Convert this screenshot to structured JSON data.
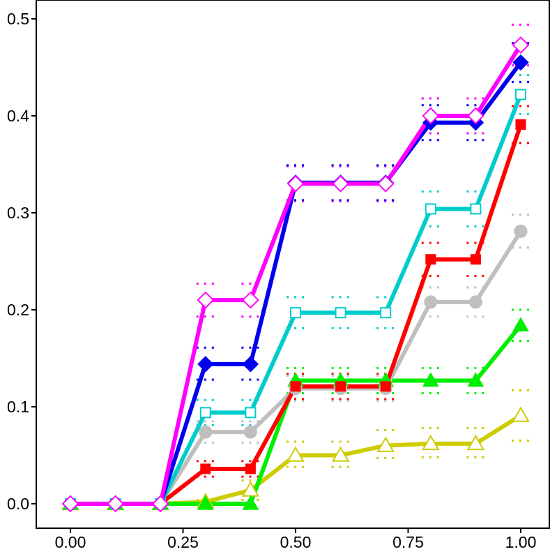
{
  "chart_data": {
    "type": "line",
    "title": "",
    "xlabel": "",
    "ylabel": "",
    "xlim": [
      -0.08,
      1.0
    ],
    "ylim": [
      -0.025,
      0.52
    ],
    "x_ticks": [
      0.0,
      0.25,
      0.5,
      0.75,
      1.0
    ],
    "x_tick_labels": [
      "0.00",
      "0.25",
      "0.50",
      "0.75",
      "1.00"
    ],
    "y_ticks": [
      0.0,
      0.1,
      0.2,
      0.3,
      0.4,
      0.5
    ],
    "y_tick_labels": [
      "0.0",
      "0.1",
      "0.2",
      "0.3",
      "0.4",
      "0.5"
    ],
    "grid": false,
    "legend": "none",
    "x": [
      0.0,
      0.1,
      0.2,
      0.3,
      0.4,
      0.5,
      0.6,
      0.7,
      0.8,
      0.9,
      1.0
    ],
    "series": [
      {
        "color": "#ff00ff",
        "marker": "diamond-open",
        "values": [
          0.0,
          0.0,
          0.0,
          0.21,
          0.21,
          0.33,
          0.33,
          0.33,
          0.4,
          0.4,
          0.473
        ],
        "interval": [
          [
            0,
            0
          ],
          [
            0,
            0
          ],
          [
            0,
            0
          ],
          [
            0.193,
            0.227
          ],
          [
            0.193,
            0.227
          ],
          [
            0.312,
            0.348
          ],
          [
            0.312,
            0.348
          ],
          [
            0.312,
            0.348
          ],
          [
            0.382,
            0.418
          ],
          [
            0.382,
            0.418
          ],
          [
            0.452,
            0.494
          ]
        ]
      },
      {
        "color": "#0000ee",
        "marker": "diamond-filled",
        "values": [
          0.0,
          0.0,
          0.0,
          0.144,
          0.144,
          0.331,
          0.331,
          0.331,
          0.393,
          0.393,
          0.455
        ],
        "interval": [
          [
            0,
            0
          ],
          [
            0,
            0
          ],
          [
            0,
            0
          ],
          [
            0.128,
            0.161
          ],
          [
            0.128,
            0.161
          ],
          [
            0.313,
            0.349
          ],
          [
            0.313,
            0.349
          ],
          [
            0.313,
            0.349
          ],
          [
            0.375,
            0.411
          ],
          [
            0.375,
            0.411
          ],
          [
            0.435,
            0.475
          ]
        ]
      },
      {
        "color": "#00cccc",
        "marker": "square-open",
        "values": [
          0.0,
          0.0,
          0.0,
          0.094,
          0.094,
          0.197,
          0.197,
          0.197,
          0.304,
          0.304,
          0.422
        ],
        "interval": [
          [
            0,
            0
          ],
          [
            0,
            0
          ],
          [
            0,
            0
          ],
          [
            0.081,
            0.107
          ],
          [
            0.081,
            0.107
          ],
          [
            0.181,
            0.213
          ],
          [
            0.181,
            0.213
          ],
          [
            0.181,
            0.213
          ],
          [
            0.286,
            0.322
          ],
          [
            0.286,
            0.322
          ],
          [
            0.402,
            0.442
          ]
        ]
      },
      {
        "color": "#ff0000",
        "marker": "square-filled",
        "values": [
          0.0,
          0.0,
          0.0,
          0.036,
          0.036,
          0.121,
          0.121,
          0.121,
          0.252,
          0.252,
          0.391
        ],
        "interval": [
          [
            0,
            0
          ],
          [
            0,
            0
          ],
          [
            0,
            0
          ],
          [
            0.028,
            0.044
          ],
          [
            0.028,
            0.044
          ],
          [
            0.108,
            0.134
          ],
          [
            0.108,
            0.134
          ],
          [
            0.108,
            0.134
          ],
          [
            0.235,
            0.269
          ],
          [
            0.235,
            0.269
          ],
          [
            0.372,
            0.41
          ]
        ]
      },
      {
        "color": "#bfbfbf",
        "marker": "circle-filled",
        "values": [
          0.0,
          0.0,
          0.0,
          0.074,
          0.074,
          0.119,
          0.119,
          0.119,
          0.208,
          0.208,
          0.281
        ],
        "interval": [
          [
            0,
            0
          ],
          [
            0,
            0
          ],
          [
            0,
            0
          ],
          [
            0.063,
            0.085
          ],
          [
            0.063,
            0.085
          ],
          [
            0.106,
            0.132
          ],
          [
            0.106,
            0.132
          ],
          [
            0.106,
            0.132
          ],
          [
            0.193,
            0.223
          ],
          [
            0.193,
            0.223
          ],
          [
            0.264,
            0.298
          ]
        ]
      },
      {
        "color": "#00ee00",
        "marker": "triangle-filled",
        "values": [
          0.0,
          0.0,
          0.0,
          0.0,
          0.0,
          0.127,
          0.127,
          0.127,
          0.127,
          0.127,
          0.184
        ],
        "interval": [
          [
            0,
            0
          ],
          [
            0,
            0
          ],
          [
            0,
            0
          ],
          [
            0,
            0
          ],
          [
            0,
            0
          ],
          [
            0.114,
            0.14
          ],
          [
            0.114,
            0.14
          ],
          [
            0.114,
            0.14
          ],
          [
            0.114,
            0.14
          ],
          [
            0.114,
            0.14
          ],
          [
            0.168,
            0.2
          ]
        ]
      },
      {
        "color": "#cccc00",
        "marker": "triangle-open",
        "values": [
          0.0,
          0.0,
          0.0,
          0.002,
          0.014,
          0.05,
          0.05,
          0.06,
          0.062,
          0.062,
          0.091
        ],
        "interval": [
          [
            0,
            0
          ],
          [
            0,
            0
          ],
          [
            0,
            0
          ],
          [
            0,
            0.004
          ],
          [
            0.004,
            0.024
          ],
          [
            0.038,
            0.064
          ],
          [
            0.038,
            0.064
          ],
          [
            0.047,
            0.076
          ],
          [
            0.048,
            0.078
          ],
          [
            0.048,
            0.078
          ],
          [
            0.065,
            0.117
          ]
        ]
      }
    ]
  }
}
